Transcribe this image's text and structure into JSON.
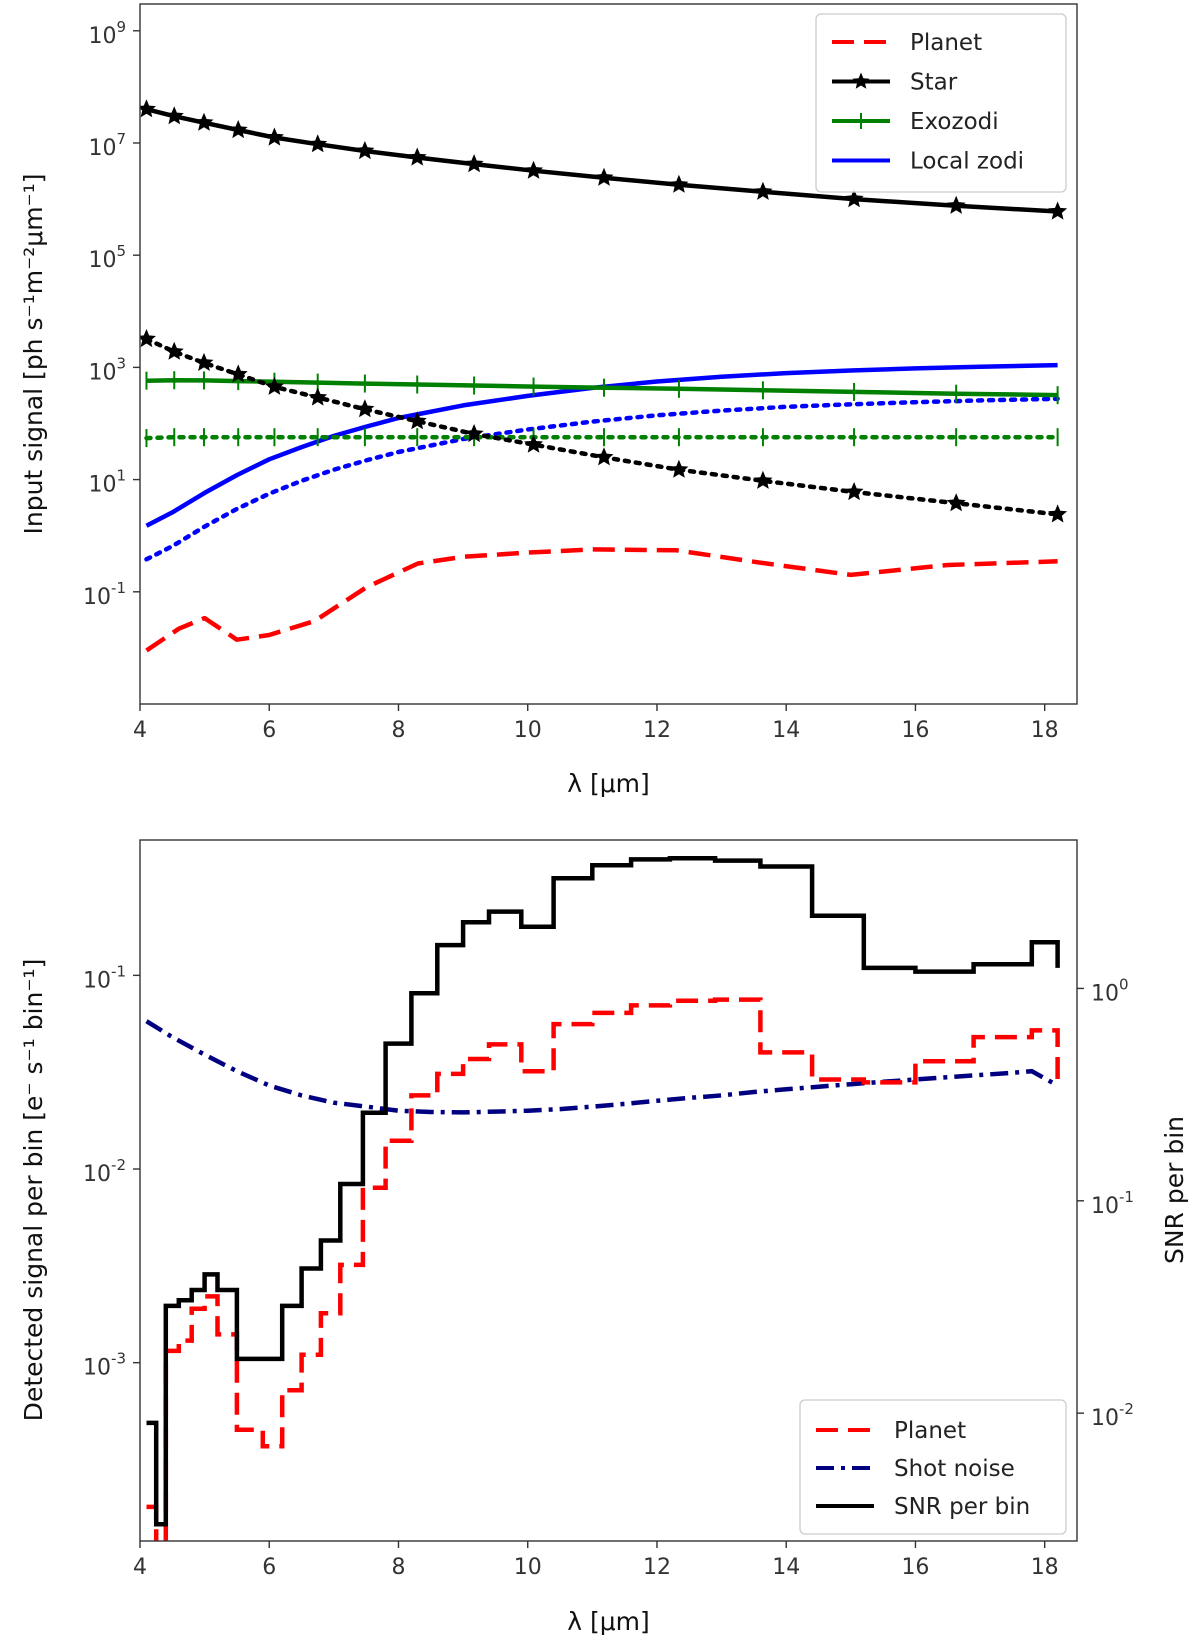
{
  "chart_data": [
    {
      "type": "line",
      "title": "",
      "xlabel": "λ [μm]",
      "ylabel": "Input signal [ph s⁻¹m⁻²μm⁻¹]",
      "xlim": [
        4,
        18.5
      ],
      "ylim": [
        0.001,
        3000000000
      ],
      "yscale": "log",
      "grid": false,
      "legend_location": "top-right",
      "x_ticks": [
        4,
        6,
        8,
        10,
        12,
        14,
        16,
        18
      ],
      "y_ticks": [
        {
          "value": 0.1,
          "base": "10",
          "exp": "-1"
        },
        {
          "value": 10,
          "base": "10",
          "exp": "1"
        },
        {
          "value": 1000,
          "base": "10",
          "exp": "3"
        },
        {
          "value": 100000,
          "base": "10",
          "exp": "5"
        },
        {
          "value": 10000000,
          "base": "10",
          "exp": "7"
        },
        {
          "value": 1000000000,
          "base": "10",
          "exp": "9"
        }
      ],
      "series": [
        {
          "name": "Planet",
          "color": "#ff0000",
          "style": "dashed",
          "legend": true,
          "x": [
            4.1,
            4.6,
            5.0,
            5.5,
            6.0,
            6.7,
            7.5,
            8.3,
            9.0,
            10.0,
            11.0,
            12.3,
            13.6,
            15.0,
            16.5,
            18.2
          ],
          "y": [
            0.009,
            0.022,
            0.034,
            0.014,
            0.017,
            0.03,
            0.12,
            0.32,
            0.42,
            0.5,
            0.57,
            0.55,
            0.33,
            0.2,
            0.3,
            0.35
          ]
        },
        {
          "name": "Star",
          "color": "#000000",
          "style": "solid",
          "marker": "star",
          "legend": true,
          "x": [
            4.1,
            4.53,
            4.99,
            5.52,
            6.08,
            6.75,
            7.48,
            8.29,
            9.17,
            10.09,
            11.18,
            12.34,
            13.64,
            15.05,
            16.63,
            18.2
          ],
          "y": [
            40000000,
            30000000,
            23000000,
            17000000,
            12500000,
            9500000,
            7200000,
            5500000,
            4200000,
            3200000,
            2400000,
            1800000,
            1350000,
            1000000,
            760000,
            600000
          ]
        },
        {
          "name": "Star (dotted)",
          "color": "#000000",
          "style": "dotted",
          "marker": "star",
          "legend": false,
          "x": [
            4.1,
            4.53,
            4.99,
            5.52,
            6.08,
            6.75,
            7.48,
            8.29,
            9.17,
            10.09,
            11.18,
            12.34,
            13.64,
            15.05,
            16.63,
            18.2
          ],
          "y": [
            3200,
            1900,
            1200,
            750,
            450,
            290,
            180,
            110,
            65,
            42,
            25,
            15,
            9.5,
            6,
            3.8,
            2.4
          ]
        },
        {
          "name": "Exozodi",
          "color": "#008000",
          "style": "solid",
          "marker": "vline",
          "legend": true,
          "x": [
            4.1,
            4.53,
            4.99,
            5.52,
            6.08,
            6.75,
            7.48,
            8.29,
            9.17,
            10.09,
            11.18,
            12.34,
            13.64,
            15.05,
            16.63,
            18.2
          ],
          "y": [
            580,
            590,
            585,
            570,
            555,
            535,
            515,
            495,
            475,
            455,
            435,
            415,
            390,
            365,
            340,
            320
          ]
        },
        {
          "name": "Exozodi (dotted)",
          "color": "#008000",
          "style": "dotted",
          "marker": "vline",
          "legend": false,
          "x": [
            4.1,
            4.53,
            4.99,
            5.52,
            6.08,
            6.75,
            7.48,
            8.29,
            9.17,
            10.09,
            11.18,
            12.34,
            13.64,
            15.05,
            16.63,
            18.2
          ],
          "y": [
            55,
            57,
            57,
            57,
            57,
            57,
            57,
            57,
            57,
            57,
            57,
            57,
            57,
            57,
            57,
            57
          ]
        },
        {
          "name": "Local zodi",
          "color": "#0000ff",
          "style": "solid",
          "legend": true,
          "x": [
            4.1,
            4.5,
            5.0,
            5.5,
            6.0,
            6.5,
            7.0,
            7.5,
            8.0,
            9.0,
            10.0,
            11.0,
            12.0,
            13.0,
            14.0,
            15.0,
            16.0,
            17.0,
            18.2
          ],
          "y": [
            1.5,
            2.6,
            5.8,
            12,
            23,
            38,
            60,
            88,
            125,
            210,
            310,
            430,
            560,
            680,
            790,
            880,
            960,
            1030,
            1100
          ]
        },
        {
          "name": "Local zodi (dotted)",
          "color": "#0000ff",
          "style": "dotted",
          "legend": false,
          "x": [
            4.1,
            4.5,
            5.0,
            5.5,
            6.0,
            6.5,
            7.0,
            7.5,
            8.0,
            9.0,
            10.0,
            11.0,
            12.0,
            13.0,
            14.0,
            15.0,
            16.0,
            17.0,
            18.2
          ],
          "y": [
            0.38,
            0.65,
            1.45,
            3.0,
            5.6,
            9.5,
            15,
            22,
            31,
            53,
            78,
            108,
            140,
            170,
            198,
            220,
            240,
            258,
            275
          ]
        }
      ]
    },
    {
      "type": "line",
      "title": "",
      "xlabel": "λ [μm]",
      "ylabel": "Detected signal per bin [e⁻ s⁻¹ bin⁻¹]",
      "ylabel_right": "SNR per bin",
      "xlim": [
        4,
        18.5
      ],
      "ylim": [
        0.00012,
        0.5
      ],
      "yscale": "log",
      "ylim_right": [
        0.0025,
        5
      ],
      "yscale_right": "log",
      "grid": false,
      "legend_location": "bottom-right",
      "x_ticks": [
        4,
        6,
        8,
        10,
        12,
        14,
        16,
        18
      ],
      "y_ticks": [
        {
          "value": 0.001,
          "base": "10",
          "exp": "-3"
        },
        {
          "value": 0.01,
          "base": "10",
          "exp": "-2"
        },
        {
          "value": 0.1,
          "base": "10",
          "exp": "-1"
        }
      ],
      "y_ticks_right": [
        {
          "value": 0.01,
          "base": "10",
          "exp": "-2"
        },
        {
          "value": 0.1,
          "base": "10",
          "exp": "-1"
        },
        {
          "value": 1,
          "base": "10",
          "exp": "0"
        }
      ],
      "bin_edges": [
        4.1,
        4.25,
        4.4,
        4.6,
        4.8,
        5.0,
        5.2,
        5.5,
        5.9,
        6.2,
        6.5,
        6.8,
        7.1,
        7.45,
        7.8,
        8.2,
        8.6,
        9.0,
        9.4,
        9.9,
        10.4,
        11.0,
        11.6,
        12.2,
        12.9,
        13.6,
        14.4,
        15.2,
        16.0,
        16.9,
        17.8,
        18.2
      ],
      "series": [
        {
          "name": "Planet",
          "axis": "left",
          "color": "#ff0000",
          "style": "dashed",
          "legend": true,
          "values": [
            0.00018,
            0.00011,
            0.00115,
            0.0013,
            0.0019,
            0.0022,
            0.0014,
            0.00045,
            0.00037,
            0.00072,
            0.0011,
            0.0018,
            0.0032,
            0.008,
            0.014,
            0.024,
            0.031,
            0.037,
            0.044,
            0.032,
            0.056,
            0.064,
            0.07,
            0.074,
            0.075,
            0.04,
            0.029,
            0.028,
            0.036,
            0.048,
            0.052,
            0.028
          ]
        },
        {
          "name": "Shot noise",
          "axis": "left",
          "color": "#000080",
          "style": "dashdot",
          "legend": true,
          "x": [
            4.1,
            4.5,
            5.0,
            5.5,
            6.0,
            6.5,
            7.0,
            7.5,
            8.0,
            8.5,
            9.0,
            9.5,
            10.0,
            10.5,
            11.0,
            11.5,
            12.0,
            12.5,
            13.0,
            13.5,
            14.0,
            14.5,
            15.0,
            15.5,
            16.0,
            16.5,
            17.0,
            17.5,
            17.8,
            18.2
          ],
          "y": [
            0.058,
            0.048,
            0.039,
            0.032,
            0.027,
            0.024,
            0.022,
            0.021,
            0.02,
            0.0197,
            0.0196,
            0.0198,
            0.02,
            0.0204,
            0.021,
            0.0217,
            0.0225,
            0.0233,
            0.024,
            0.025,
            0.0258,
            0.0266,
            0.0274,
            0.0282,
            0.029,
            0.0298,
            0.0306,
            0.0314,
            0.032,
            0.027
          ]
        },
        {
          "name": "SNR per bin",
          "axis": "right",
          "color": "#000000",
          "style": "solid",
          "legend": true,
          "values": [
            0.009,
            0.003,
            0.032,
            0.034,
            0.038,
            0.045,
            0.038,
            0.018,
            0.018,
            0.032,
            0.048,
            0.065,
            0.12,
            0.26,
            0.55,
            0.95,
            1.6,
            2.05,
            2.3,
            1.95,
            3.3,
            3.8,
            4.05,
            4.1,
            4.0,
            3.75,
            2.2,
            1.25,
            1.2,
            1.3,
            1.65,
            1.25
          ]
        }
      ]
    }
  ]
}
